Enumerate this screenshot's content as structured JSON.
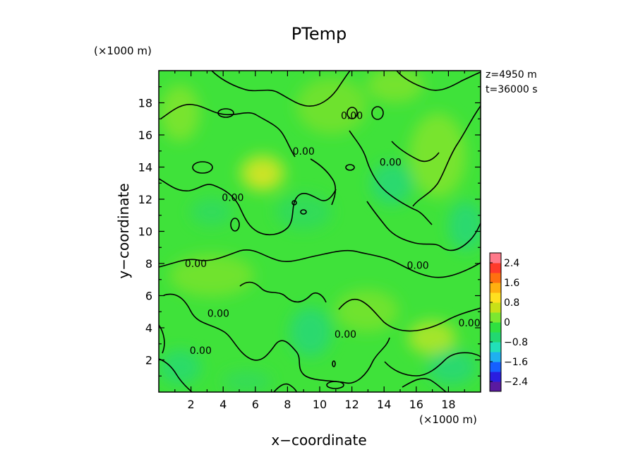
{
  "chart_data": {
    "type": "heatmap",
    "title": "PTemp",
    "xlabel": "x−coordinate",
    "ylabel": "y−coordinate",
    "x_unit": "(×1000 m)",
    "y_unit": "(×1000 m)",
    "info_lines": [
      "z=4950  m",
      "t=36000  s"
    ],
    "xlim": [
      0,
      20
    ],
    "ylim": [
      0,
      20
    ],
    "x_ticks": [
      2,
      4,
      6,
      8,
      10,
      12,
      14,
      16,
      18
    ],
    "y_ticks": [
      2,
      4,
      6,
      8,
      10,
      12,
      14,
      16,
      18
    ],
    "x_tick_labels": [
      "2",
      "4",
      "6",
      "8",
      "10",
      "12",
      "14",
      "16",
      "18"
    ],
    "y_tick_labels": [
      "2",
      "4",
      "6",
      "8",
      "10",
      "12",
      "14",
      "16",
      "18"
    ],
    "colorbar": {
      "range": [
        -2.8,
        2.8
      ],
      "tick_values": [
        2.4,
        1.6,
        0.8,
        0,
        -0.8,
        -1.6,
        -2.4
      ],
      "tick_labels": [
        "2.4",
        "1.6",
        "0.8",
        "0",
        "−0.8",
        "−1.6",
        "−2.4"
      ],
      "colors": [
        "#5a1aa0",
        "#2a1ee0",
        "#1560ff",
        "#1fb0f0",
        "#22e0b8",
        "#22d870",
        "#30e040",
        "#7ce830",
        "#c8e018",
        "#ffe020",
        "#ffb010",
        "#ff7010",
        "#ff3a2a",
        "#ff7a8a"
      ]
    },
    "contour_level_label": "0.00",
    "contour_labels": [
      {
        "x": 2.3,
        "y": 8.0,
        "text": "0.00"
      },
      {
        "x": 9.0,
        "y": 15.0,
        "text": "0.00"
      },
      {
        "x": 14.4,
        "y": 14.3,
        "text": "0.00"
      },
      {
        "x": 16.1,
        "y": 7.9,
        "text": "0.00"
      },
      {
        "x": 3.7,
        "y": 4.9,
        "text": "0.00"
      },
      {
        "x": 2.6,
        "y": 2.6,
        "text": "0.00"
      },
      {
        "x": 11.6,
        "y": 3.6,
        "text": "0.00"
      },
      {
        "x": 12.0,
        "y": 17.2,
        "text": "0.00"
      },
      {
        "x": 19.3,
        "y": 4.3,
        "text": "0.00"
      },
      {
        "x": 4.6,
        "y": 12.1,
        "text": "0.00"
      }
    ],
    "field_extremes": [
      {
        "x": 6.5,
        "y": 13.5,
        "value": 0.6
      },
      {
        "x": 17.5,
        "y": 3.2,
        "value": 0.5
      },
      {
        "x": 11.0,
        "y": 6.5,
        "value": 0.3
      },
      {
        "x": 10.0,
        "y": 4.0,
        "value": -0.5
      },
      {
        "x": 13.0,
        "y": 12.5,
        "value": -0.4
      },
      {
        "x": 15.0,
        "y": 14.5,
        "value": -0.3
      }
    ]
  }
}
